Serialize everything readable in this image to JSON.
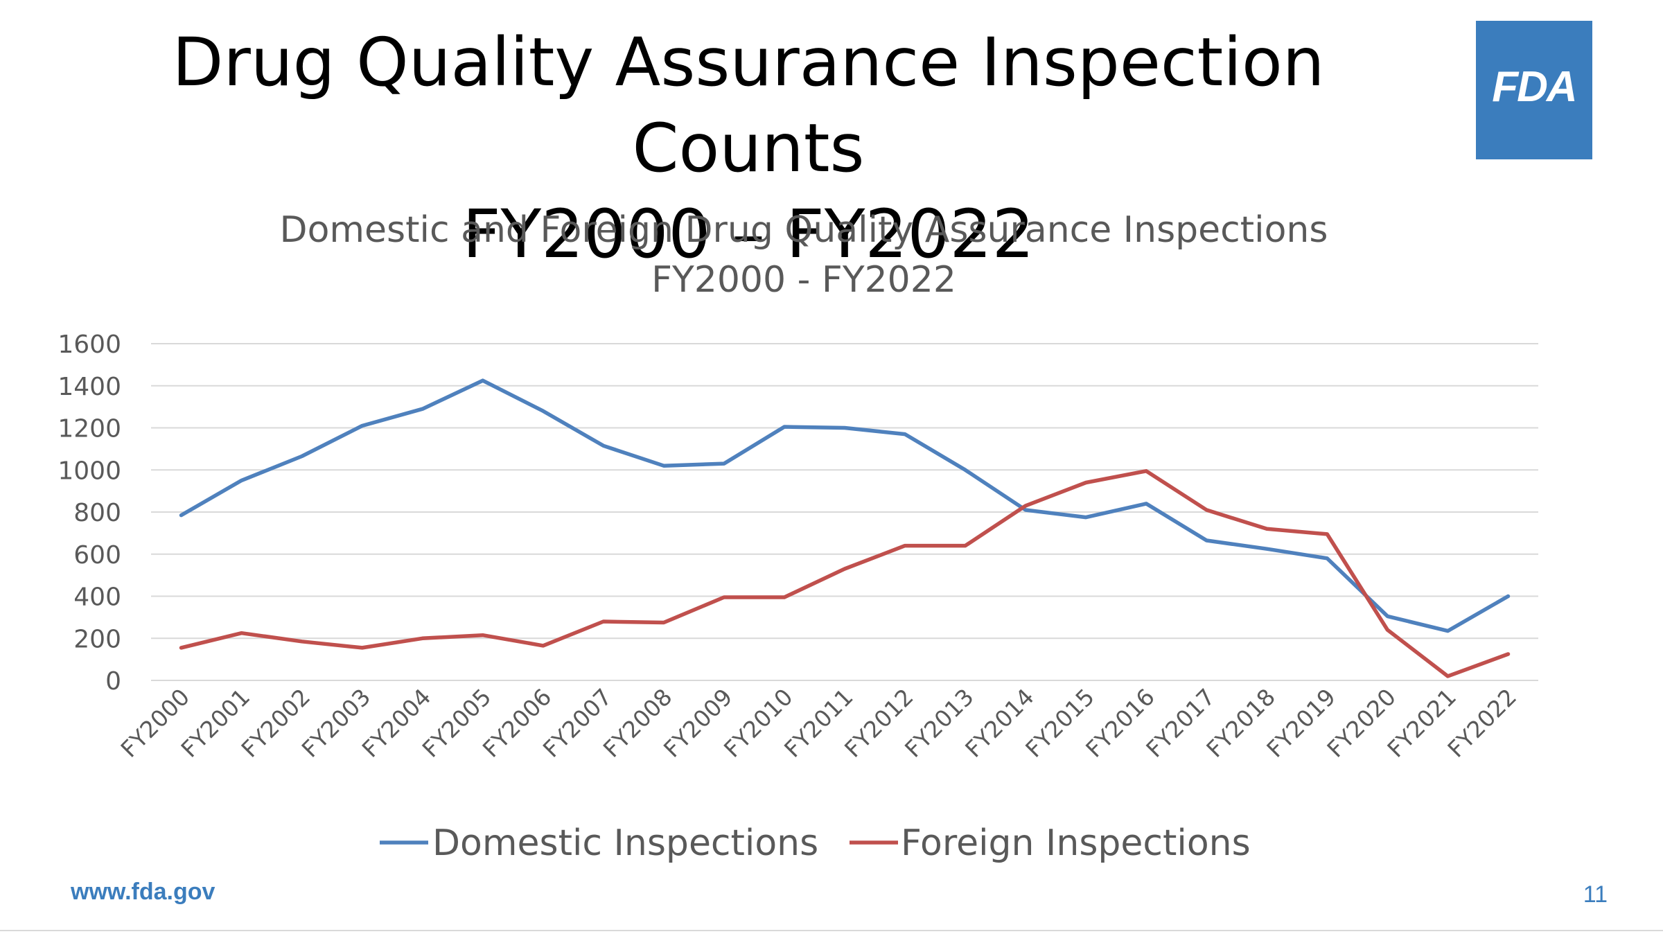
{
  "slide": {
    "title_line1": "Drug Quality Assurance Inspection Counts",
    "title_line2": "FY2000 – FY2022",
    "logo_text": "FDA",
    "footer_url": "www.fda.gov",
    "page_number": "11"
  },
  "chart_data": {
    "type": "line",
    "title": "Domestic and Foreign Drug Quality Assurance Inspections",
    "subtitle": "FY2000 - FY2022",
    "xlabel": "",
    "ylabel": "",
    "ylim": [
      0,
      1600
    ],
    "yticks": [
      0,
      200,
      400,
      600,
      800,
      1000,
      1200,
      1400,
      1600
    ],
    "grid": true,
    "legend_position": "bottom",
    "x": [
      "FY2000",
      "FY2001",
      "FY2002",
      "FY2003",
      "FY2004",
      "FY2005",
      "FY2006",
      "FY2007",
      "FY2008",
      "FY2009",
      "FY2010",
      "FY2011",
      "FY2012",
      "FY2013",
      "FY2014",
      "FY2015",
      "FY2016",
      "FY2017",
      "FY2018",
      "FY2019",
      "FY2020",
      "FY2021",
      "FY2022"
    ],
    "series": [
      {
        "name": "Domestic Inspections",
        "color": "#4f81bd",
        "values": [
          785,
          950,
          1065,
          1210,
          1290,
          1425,
          1280,
          1115,
          1020,
          1030,
          1205,
          1200,
          1170,
          1000,
          810,
          775,
          840,
          665,
          625,
          580,
          305,
          235,
          400
        ]
      },
      {
        "name": "Foreign Inspections",
        "color": "#c0504d",
        "values": [
          155,
          225,
          185,
          155,
          200,
          215,
          165,
          280,
          275,
          395,
          395,
          530,
          640,
          640,
          830,
          940,
          995,
          810,
          720,
          695,
          240,
          20,
          125
        ]
      }
    ]
  }
}
